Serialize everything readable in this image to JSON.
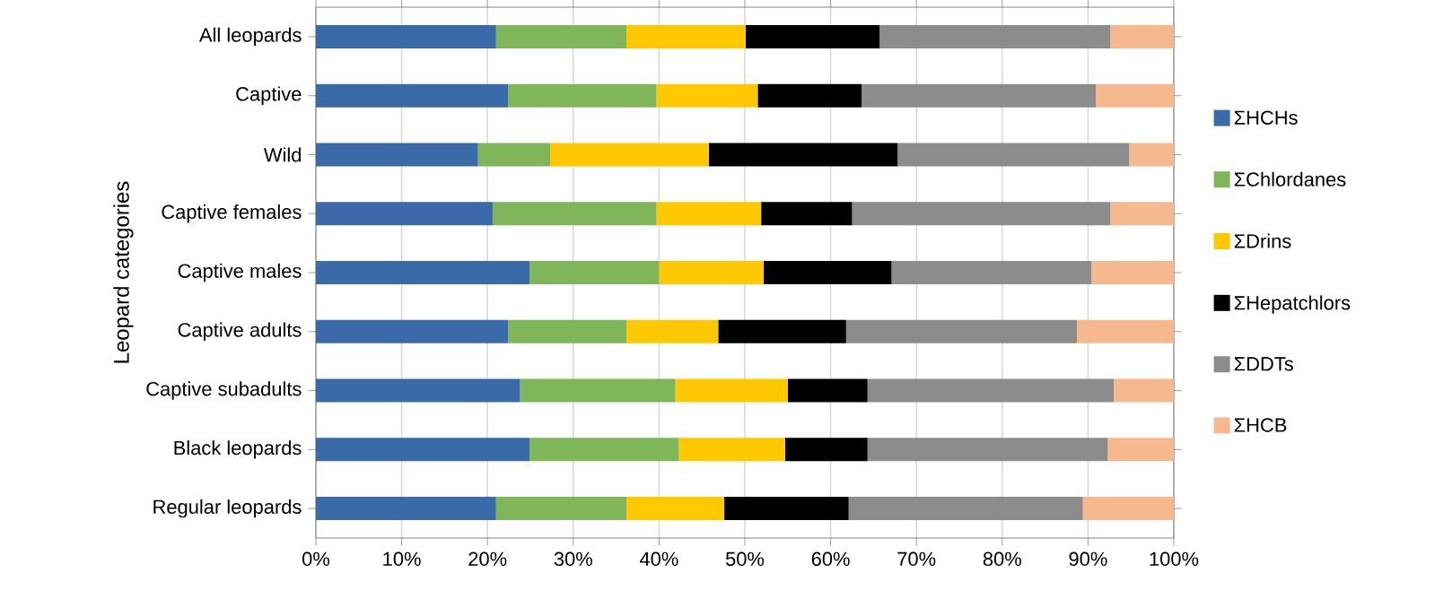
{
  "chart_data": {
    "type": "bar",
    "orientation": "horizontal",
    "stacked": true,
    "ylabel": "Leopard categories",
    "categories": [
      "All leopards",
      "Captive",
      "Wild",
      "Captive females",
      "Captive males",
      "Captive adults",
      "Captive subadults",
      "Black leopards",
      "Regular leopards"
    ],
    "series": [
      {
        "name": "ΣHCHs",
        "color": "#3b6aa8",
        "values": [
          21,
          22.4,
          18.9,
          20.6,
          24.9,
          22.4,
          23.8,
          24.9,
          21
        ]
      },
      {
        "name": "ΣChlordanes",
        "color": "#7fb65a",
        "values": [
          15.2,
          17.3,
          8.4,
          19.1,
          15.1,
          13.8,
          18.1,
          17.4,
          15.2
        ]
      },
      {
        "name": "ΣDrins",
        "color": "#ffc800",
        "values": [
          13.9,
          11.8,
          18.5,
          12.2,
          12.2,
          10.7,
          13.1,
          12.4,
          11.4
        ]
      },
      {
        "name": "ΣHepatchlors",
        "color": "#000000",
        "values": [
          15.6,
          12.1,
          22,
          10.6,
          14.9,
          14.9,
          9.3,
          9.6,
          14.5
        ]
      },
      {
        "name": "ΣDDTs",
        "color": "#8c8c8c",
        "values": [
          26.9,
          27.3,
          27,
          30.1,
          23.3,
          26.9,
          28.7,
          28,
          27.3
        ]
      },
      {
        "name": "ΣHCB",
        "color": "#f6b98e",
        "values": [
          7.4,
          9.1,
          5.2,
          7.4,
          9.6,
          11.3,
          7,
          7.7,
          10.6
        ]
      }
    ],
    "xlim": [
      0,
      100
    ],
    "xticks": [
      {
        "value": 0,
        "label": "0%"
      },
      {
        "value": 10,
        "label": "10%"
      },
      {
        "value": 20,
        "label": "20%"
      },
      {
        "value": 30,
        "label": "30%"
      },
      {
        "value": 40,
        "label": "40%"
      },
      {
        "value": 50,
        "label": "50%"
      },
      {
        "value": 60,
        "label": "60%"
      },
      {
        "value": 70,
        "label": "70%"
      },
      {
        "value": 80,
        "label": "80%"
      },
      {
        "value": 90,
        "label": "90%"
      },
      {
        "value": 100,
        "label": "100%"
      }
    ],
    "grid": "x",
    "legend": "right"
  }
}
